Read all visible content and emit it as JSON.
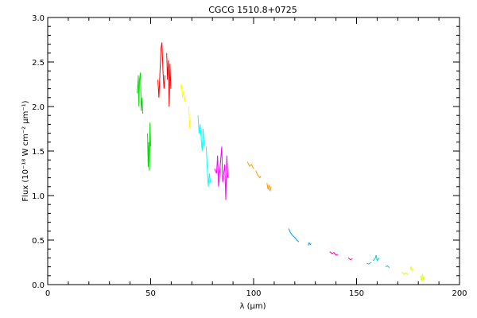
{
  "chart_data": {
    "type": "line",
    "title": "CGCG 1510.8+0725",
    "xlabel": "λ (μm)",
    "ylabel": "Flux (10⁻¹⁸ W cm⁻² μm⁻¹)",
    "xlim": [
      0,
      200
    ],
    "ylim": [
      0,
      3.0
    ],
    "x_ticks": [
      0,
      50,
      100,
      150,
      200
    ],
    "x_tick_labels": [
      "0",
      "50",
      "100",
      "150",
      "200"
    ],
    "y_ticks": [
      0.0,
      0.5,
      1.0,
      1.5,
      2.0,
      2.5,
      3.0
    ],
    "y_tick_labels": [
      "0.0",
      "0.5",
      "1.0",
      "1.5",
      "2.0",
      "2.5",
      "3.0"
    ],
    "grid": false,
    "series": [
      {
        "color": "#00e000",
        "x": [
          43.5,
          44.0,
          44.3,
          44.6,
          45.0,
          45.4,
          45.8,
          46.2
        ],
        "y": [
          2.15,
          2.35,
          2.0,
          2.3,
          2.38,
          1.95,
          2.1,
          1.92
        ]
      },
      {
        "color": "#00e000",
        "x": [
          48.5,
          48.8,
          49.1,
          49.4,
          49.7,
          50.0
        ],
        "y": [
          1.7,
          1.32,
          1.6,
          1.28,
          1.82,
          1.55
        ]
      },
      {
        "color": "#ff0000",
        "x": [
          53.5,
          54.0,
          54.5,
          55.0,
          55.5,
          56.0,
          56.5,
          57.0
        ],
        "y": [
          2.3,
          2.1,
          2.38,
          2.65,
          2.72,
          2.4,
          2.2,
          2.35
        ]
      },
      {
        "color": "#ff0000",
        "x": [
          57.8,
          58.2,
          58.6,
          59.0,
          59.4,
          59.8
        ],
        "y": [
          2.6,
          2.3,
          2.52,
          2.0,
          2.48,
          2.2
        ]
      },
      {
        "color": "#ffff00",
        "x": [
          64.5,
          65.0,
          65.5,
          66.0,
          66.5,
          67.0
        ],
        "y": [
          2.2,
          2.25,
          2.1,
          2.18,
          2.05,
          2.12
        ]
      },
      {
        "color": "#ffff00",
        "x": [
          68.5,
          69.0,
          69.3
        ],
        "y": [
          2.0,
          1.75,
          1.85
        ]
      },
      {
        "color": "#00ffff",
        "x": [
          73.0,
          73.5,
          74.0,
          74.5,
          75.0,
          75.5,
          76.0
        ],
        "y": [
          1.9,
          1.7,
          1.8,
          1.65,
          1.5,
          1.75,
          1.55
        ]
      },
      {
        "color": "#00ffff",
        "x": [
          77.0,
          77.5,
          78.0,
          78.5,
          79.0
        ],
        "y": [
          1.55,
          1.3,
          1.1,
          1.25,
          1.15
        ]
      },
      {
        "color": "#ff00ff",
        "x": [
          81.0,
          82.0,
          82.5,
          83.0,
          84.0,
          84.5,
          85.0,
          86.0,
          86.5,
          87.0,
          87.5
        ],
        "y": [
          1.3,
          1.25,
          1.45,
          1.1,
          1.4,
          1.55,
          1.15,
          1.35,
          0.95,
          1.45,
          1.2
        ]
      },
      {
        "color": "#ff9900",
        "x": [
          97.0,
          98.0,
          99.0,
          100.0
        ],
        "y": [
          1.38,
          1.33,
          1.35,
          1.3
        ]
      },
      {
        "color": "#ff9900",
        "x": [
          101.0,
          102.0,
          103.0,
          103.5
        ],
        "y": [
          1.28,
          1.23,
          1.2,
          1.22
        ]
      },
      {
        "color": "#ff9900",
        "x": [
          106.5,
          107.0,
          107.5,
          108.0,
          108.5
        ],
        "y": [
          1.14,
          1.07,
          1.12,
          1.05,
          1.1
        ]
      },
      {
        "color": "#0099ff",
        "x": [
          117.0,
          118.0,
          119.0,
          120.0,
          121.0,
          122.0
        ],
        "y": [
          0.63,
          0.58,
          0.55,
          0.53,
          0.5,
          0.48
        ]
      },
      {
        "color": "#0099ff",
        "x": [
          126.5,
          127.0,
          127.5,
          128.0
        ],
        "y": [
          0.44,
          0.47,
          0.45,
          0.46
        ]
      },
      {
        "color": "#ff0099",
        "x": [
          137.0,
          138.0,
          139.0,
          140.0,
          141.0
        ],
        "y": [
          0.37,
          0.35,
          0.36,
          0.33,
          0.34
        ]
      },
      {
        "color": "#ff0099",
        "x": [
          146.0,
          147.0,
          148.0
        ],
        "y": [
          0.3,
          0.28,
          0.29
        ]
      },
      {
        "color": "#00cccc",
        "x": [
          155.0,
          156.0,
          157.0
        ],
        "y": [
          0.24,
          0.23,
          0.25
        ]
      },
      {
        "color": "#00cccc",
        "x": [
          158.0,
          159.0,
          159.5,
          160.0,
          161.0
        ],
        "y": [
          0.27,
          0.29,
          0.33,
          0.27,
          0.3
        ]
      },
      {
        "color": "#00cccc",
        "x": [
          164.0,
          165.0,
          166.0
        ],
        "y": [
          0.2,
          0.21,
          0.19
        ]
      },
      {
        "color": "#ddff00",
        "x": [
          172.0,
          173.0,
          174.0,
          175.0
        ],
        "y": [
          0.14,
          0.12,
          0.13,
          0.11
        ]
      },
      {
        "color": "#ddff00",
        "x": [
          176.0,
          176.5,
          177.0,
          177.5
        ],
        "y": [
          0.17,
          0.2,
          0.16,
          0.18
        ]
      },
      {
        "color": "#ddff00",
        "x": [
          181.0,
          181.5,
          182.0,
          182.5,
          183.0
        ],
        "y": [
          0.1,
          0.04,
          0.12,
          0.06,
          0.09
        ]
      }
    ]
  }
}
